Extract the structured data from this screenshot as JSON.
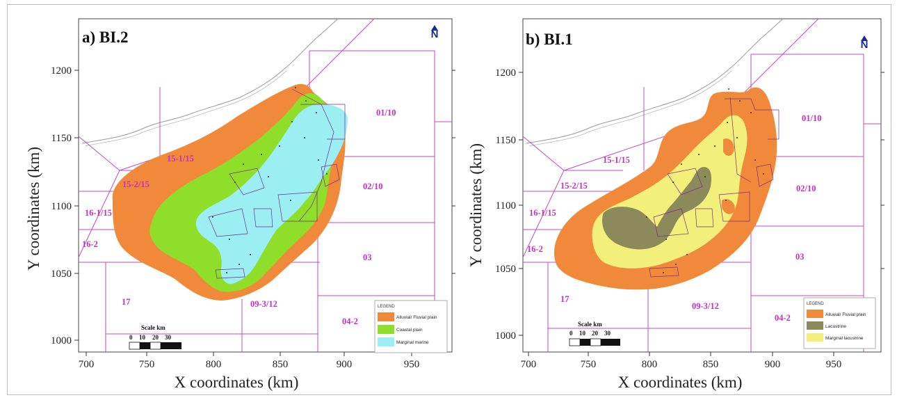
{
  "panels": [
    {
      "title": "a) BI.2",
      "xlabel": "X coordinates  (km)",
      "ylabel": "Y coordinates  (km)",
      "xticks": [
        "700",
        "750",
        "800",
        "850",
        "900",
        "950"
      ],
      "yticks": [
        "1200",
        "1150",
        "1100",
        "1050",
        "1000"
      ],
      "north": "N",
      "blocks": [
        "01/10",
        "15-1/15",
        "15-2/15",
        "02/10",
        "16-1/15",
        "16-2",
        "03",
        "17",
        "09-3/12",
        "04-2"
      ],
      "legend": {
        "title": "LEGEND",
        "items": [
          {
            "label": "Alluvial/ Fluvial plain",
            "color": "#f08a3a"
          },
          {
            "label": "Coastal plain",
            "color": "#8ede2a"
          },
          {
            "label": "Marginal marine",
            "color": "#9beef2"
          }
        ]
      },
      "scale": {
        "title": "Scale km",
        "labels": [
          "0",
          "10",
          "20",
          "30"
        ]
      }
    },
    {
      "title": "b) BI.1",
      "xlabel": "X coordinates  (km)",
      "ylabel": "Y coordinates  (km)",
      "xticks": [
        "700",
        "750",
        "800",
        "850",
        "900",
        "950"
      ],
      "yticks": [
        "1200",
        "1150",
        "1100",
        "1050",
        "1000"
      ],
      "north": "N",
      "blocks": [
        "01/10",
        "15-1/15",
        "15-2/15",
        "02/10",
        "16-1/15",
        "16-2",
        "03",
        "17",
        "09-3/12",
        "04-2"
      ],
      "legend": {
        "title": "LEGEND",
        "items": [
          {
            "label": "Alluvial/ Fluvial plain",
            "color": "#f08a3a"
          },
          {
            "label": "Lacustrine",
            "color": "#8c8a5a"
          },
          {
            "label": "Marginal lacustrine",
            "color": "#f2f07a"
          }
        ]
      },
      "scale": {
        "title": "Scale km",
        "labels": [
          "0",
          "10",
          "20",
          "30"
        ]
      }
    }
  ]
}
